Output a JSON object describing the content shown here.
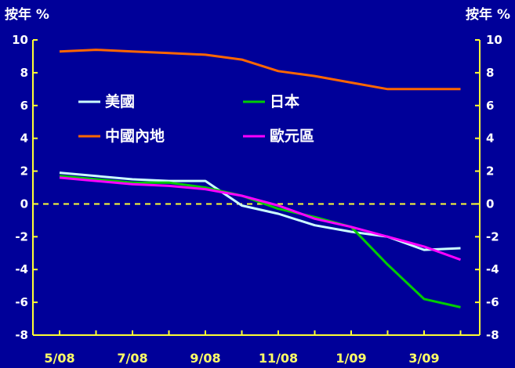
{
  "chart_data": {
    "type": "line",
    "y_unit_left": "按年 %",
    "y_unit_right": "按年 %",
    "ylim": [
      -8,
      10
    ],
    "yticks": [
      10,
      8,
      6,
      4,
      2,
      0,
      -2,
      -4,
      -6,
      -8
    ],
    "x_tick_labels": [
      "5/08",
      "7/08",
      "9/08",
      "11/08",
      "1/09",
      "3/09"
    ],
    "x": [
      "5/08",
      "6/08",
      "7/08",
      "8/08",
      "9/08",
      "10/08",
      "11/08",
      "12/08",
      "1/09",
      "2/09",
      "3/09",
      "4/09"
    ],
    "zero_line": true,
    "legend_position": "upper-left inside plot, two columns",
    "series": [
      {
        "name": "美國",
        "color": "#ccffff",
        "values": [
          1.9,
          1.7,
          1.5,
          1.4,
          1.4,
          -0.1,
          -0.6,
          -1.3,
          -1.7,
          -2.0,
          -2.8,
          -2.7
        ]
      },
      {
        "name": "日本",
        "color": "#00cc00",
        "values": [
          1.7,
          1.5,
          1.3,
          1.3,
          1.0,
          0.5,
          -0.3,
          -0.8,
          -1.4,
          -3.7,
          -5.8,
          -6.3
        ]
      },
      {
        "name": "中國內地",
        "color": "#ff6600",
        "values": [
          9.3,
          9.4,
          9.3,
          9.2,
          9.1,
          8.8,
          8.1,
          7.8,
          7.4,
          7.0,
          7.0,
          7.0
        ]
      },
      {
        "name": "歐元區",
        "color": "#ff00ff",
        "values": [
          1.6,
          1.4,
          1.2,
          1.1,
          0.9,
          0.5,
          -0.1,
          -0.9,
          -1.4,
          -2.0,
          -2.6,
          -3.4
        ]
      }
    ]
  }
}
